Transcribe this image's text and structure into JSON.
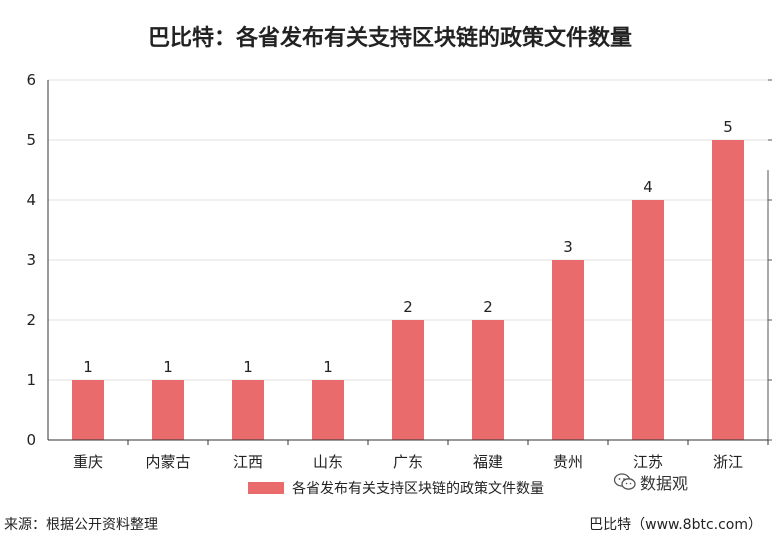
{
  "chart_data": {
    "type": "bar",
    "title": "巴比特：各省发布有关支持区块链的政策文件数量",
    "categories": [
      "重庆",
      "内蒙古",
      "江西",
      "山东",
      "广东",
      "福建",
      "贵州",
      "江苏",
      "浙江"
    ],
    "series": [
      {
        "name": "各省发布有关支持区块链的政策文件数量",
        "values": [
          1,
          1,
          1,
          1,
          2,
          2,
          3,
          4,
          5
        ]
      }
    ],
    "ylim": [
      0,
      6
    ],
    "yticks": [
      0,
      1,
      2,
      3,
      4,
      5,
      6
    ],
    "grid": true,
    "legend": "bottom",
    "color": "#e96b6b"
  },
  "footer": {
    "source": "来源：根据公开资料整理",
    "credit": "巴比特（www.8btc.com）"
  },
  "watermark": {
    "text": "数据观",
    "icon": "wechat-icon"
  }
}
